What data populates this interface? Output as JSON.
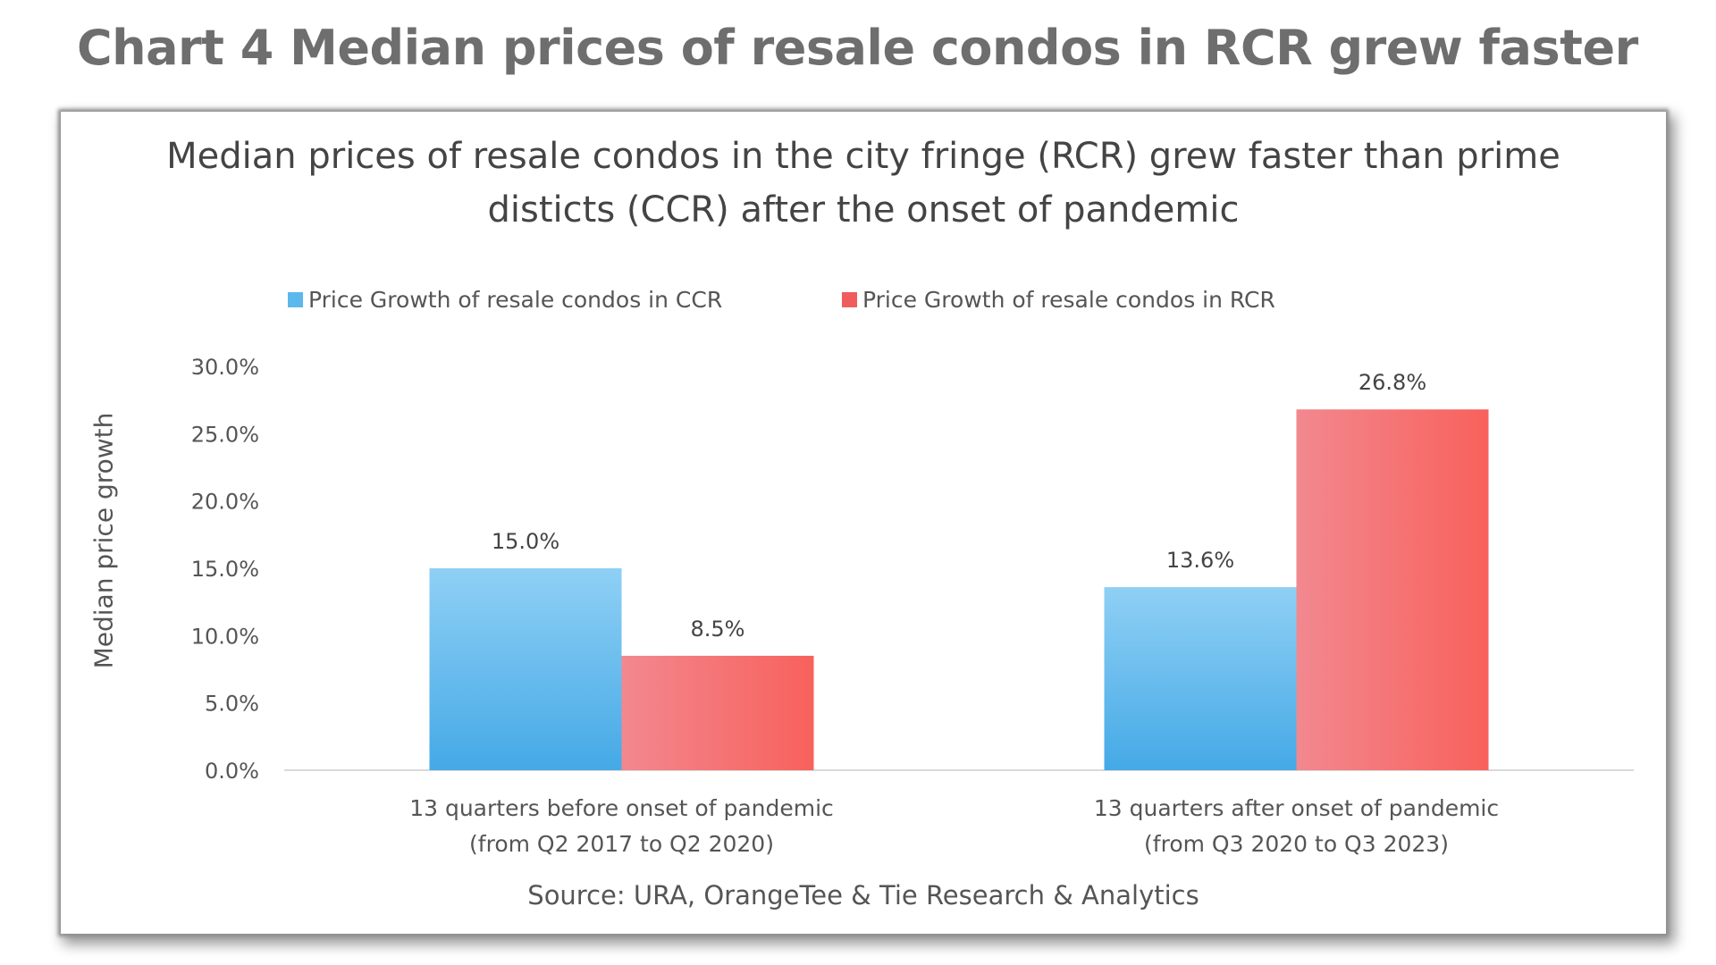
{
  "heading": "Chart 4 Median prices of resale condos in RCR grew faster",
  "chart_data": {
    "type": "bar",
    "title_lines": [
      "Median prices of resale condos in the city fringe (RCR) grew faster than prime",
      "disticts (CCR) after the onset of pandemic"
    ],
    "categories": [
      [
        "13 quarters before onset of pandemic",
        "(from Q2 2017 to Q2 2020)"
      ],
      [
        "13 quarters after onset of pandemic",
        "(from Q3 2020 to Q3 2023)"
      ]
    ],
    "series": [
      {
        "name": "Price Growth of resale condos in CCR",
        "values": [
          15.0,
          13.6
        ],
        "labels": [
          "15.0%",
          "13.6%"
        ],
        "color": "#5bb8ec",
        "gradient": [
          "#8fd0f5",
          "#45a9e6"
        ]
      },
      {
        "name": "Price Growth of resale condos in RCR",
        "values": [
          8.5,
          26.8
        ],
        "labels": [
          "8.5%",
          "26.8%"
        ],
        "color": "#f05b5b",
        "gradient": [
          "#f2888f",
          "#f8615c"
        ]
      }
    ],
    "ylabel": "Median price growth",
    "ylim": [
      0,
      30
    ],
    "yticks": [
      0,
      5,
      10,
      15,
      20,
      25,
      30
    ],
    "ytick_labels": [
      "0.0%",
      "5.0%",
      "10.0%",
      "15.0%",
      "20.0%",
      "25.0%",
      "30.0%"
    ],
    "grid": false,
    "legend_position": "top",
    "source": "Source: URA, OrangeTee & Tie Research & Analytics"
  }
}
